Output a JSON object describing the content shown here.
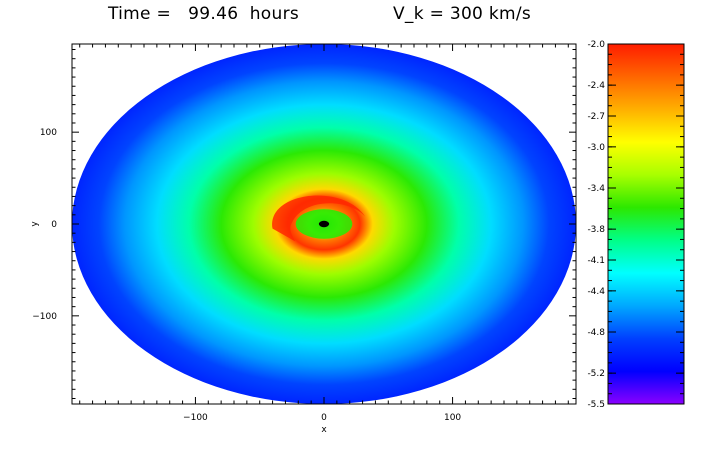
{
  "title": {
    "time_text": "Time =   99.46  hours",
    "vk_text": "V_k = 300 km/s"
  },
  "chart_data": {
    "type": "heatmap",
    "xlabel": "x",
    "ylabel": "y",
    "xlim": [
      -196,
      196
    ],
    "ylim": [
      -196,
      196
    ],
    "x_ticks": [
      -100,
      0,
      100
    ],
    "y_ticks": [
      -100,
      0,
      100
    ],
    "x_tick_labels": [
      "−100",
      "0",
      "100"
    ],
    "y_tick_labels": [
      "−100",
      "0",
      "100"
    ],
    "field": "log density (colorbar value)",
    "disk_outer_radius": 196,
    "radial_profile": [
      {
        "r": 0,
        "value": -5.5
      },
      {
        "r": 5,
        "value": -3.6
      },
      {
        "r": 12,
        "value": -3.3
      },
      {
        "r": 18,
        "value": -2.4
      },
      {
        "r": 28,
        "value": -2.1
      },
      {
        "r": 38,
        "value": -2.8
      },
      {
        "r": 55,
        "value": -3.3
      },
      {
        "r": 80,
        "value": -3.6
      },
      {
        "r": 105,
        "value": -4.0
      },
      {
        "r": 130,
        "value": -4.35
      },
      {
        "r": 155,
        "value": -4.6
      },
      {
        "r": 175,
        "value": -4.85
      },
      {
        "r": 196,
        "value": -5.0
      }
    ],
    "colorbar": {
      "range": [
        -5.5,
        -2.0
      ],
      "tick_values": [
        -2.0,
        -2.4,
        -2.7,
        -3.0,
        -3.4,
        -3.8,
        -4.1,
        -4.4,
        -4.8,
        -5.2,
        -5.5
      ],
      "tick_labels": [
        "-2.0",
        "-2.4",
        "-2.7",
        "-3.0",
        "-3.4",
        "-3.8",
        "-4.1",
        "-4.4",
        "-4.8",
        "-5.2",
        "-5.5"
      ],
      "colors_high_to_low": [
        "#ff1d00",
        "#ff6600",
        "#ffb000",
        "#ffff00",
        "#a8ff00",
        "#2ce800",
        "#00ff88",
        "#00ffff",
        "#00a8ff",
        "#0040ff",
        "#0000ff",
        "#8a00ff"
      ]
    }
  }
}
